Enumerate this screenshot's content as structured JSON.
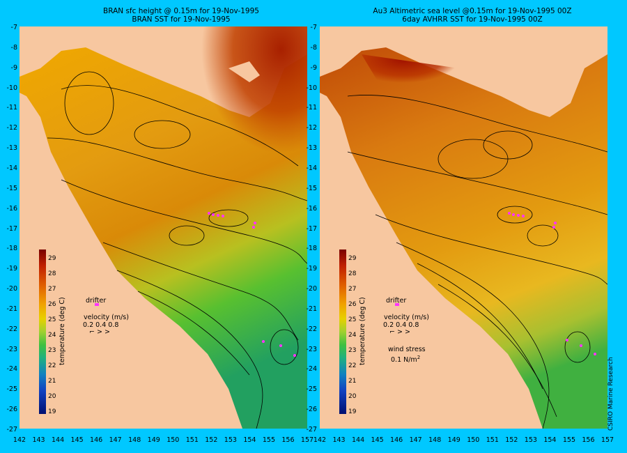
{
  "left_panel": {
    "title_line1": "BRAN sfc height @ 0.15m for 19-Nov-1995",
    "title_line2": "BRAN SST for 19-Nov-1995"
  },
  "right_panel": {
    "title_line1": "Au3 Altimetric sea level  @0.15m  for 19-Nov-1995 00Z",
    "title_line2": "6day AVHRR SST for 19-Nov-1995 00Z"
  },
  "y_ticks": [
    "-7",
    "-8",
    "-9",
    "-10",
    "-11",
    "-12",
    "-13",
    "-14",
    "-15",
    "-16",
    "-17",
    "-18",
    "-19",
    "-20",
    "-21",
    "-22",
    "-23",
    "-24",
    "-25",
    "-26",
    "-27"
  ],
  "x_ticks": [
    "142",
    "143",
    "144",
    "145",
    "146",
    "147",
    "148",
    "149",
    "150",
    "151",
    "152",
    "153",
    "154",
    "155",
    "156",
    "157"
  ],
  "colorbar": {
    "title": "temperature (deg C)",
    "ticks": [
      "29",
      "28",
      "27",
      "26",
      "25",
      "24",
      "23",
      "22",
      "21",
      "20",
      "19"
    ]
  },
  "legend": {
    "drifter": "drifter",
    "velocity_label": "velocity (m/s)",
    "velocity_scale": "0.2 0.4 0.8",
    "wind_label": "wind stress",
    "wind_value": "0.1 N/m",
    "wind_exp": "2"
  },
  "credit": "CSIRO Marine Research",
  "colors": {
    "background": "#00c8ff",
    "land": "#f7c7a0",
    "drifter": "#ff33ff"
  }
}
